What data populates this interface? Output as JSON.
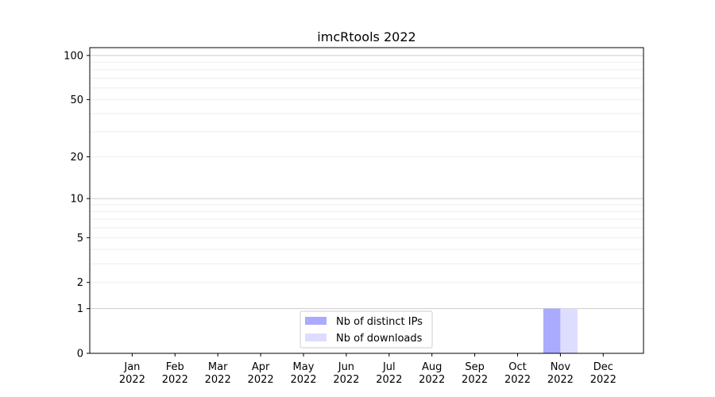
{
  "chart_data": {
    "type": "bar",
    "title": "imcRtools 2022",
    "xlabel": "",
    "ylabel": "",
    "y_scale": "log(1+y)",
    "ylim": [
      0,
      113
    ],
    "y_ticks": [
      0,
      1,
      2,
      5,
      10,
      20,
      50,
      100
    ],
    "y_tick_labels": [
      "0",
      "1",
      "2",
      "5",
      "10",
      "20",
      "50",
      "100"
    ],
    "grid": true,
    "legend_position": "lower-center",
    "categories": [
      "Jan\n2022",
      "Feb\n2022",
      "Mar\n2022",
      "Apr\n2022",
      "May\n2022",
      "Jun\n2022",
      "Jul\n2022",
      "Aug\n2022",
      "Sep\n2022",
      "Oct\n2022",
      "Nov\n2022",
      "Dec\n2022"
    ],
    "category_labels": [
      [
        "Jan",
        "2022"
      ],
      [
        "Feb",
        "2022"
      ],
      [
        "Mar",
        "2022"
      ],
      [
        "Apr",
        "2022"
      ],
      [
        "May",
        "2022"
      ],
      [
        "Jun",
        "2022"
      ],
      [
        "Jul",
        "2022"
      ],
      [
        "Aug",
        "2022"
      ],
      [
        "Sep",
        "2022"
      ],
      [
        "Oct",
        "2022"
      ],
      [
        "Nov",
        "2022"
      ],
      [
        "Dec",
        "2022"
      ]
    ],
    "series": [
      {
        "name": "Nb of distinct IPs",
        "color": "#aaaaff",
        "values": [
          0,
          0,
          0,
          0,
          0,
          0,
          0,
          0,
          0,
          0,
          1,
          0
        ]
      },
      {
        "name": "Nb of downloads",
        "color": "#ddddff",
        "values": [
          0,
          0,
          0,
          0,
          0,
          0,
          0,
          0,
          0,
          0,
          1,
          0
        ]
      }
    ]
  }
}
